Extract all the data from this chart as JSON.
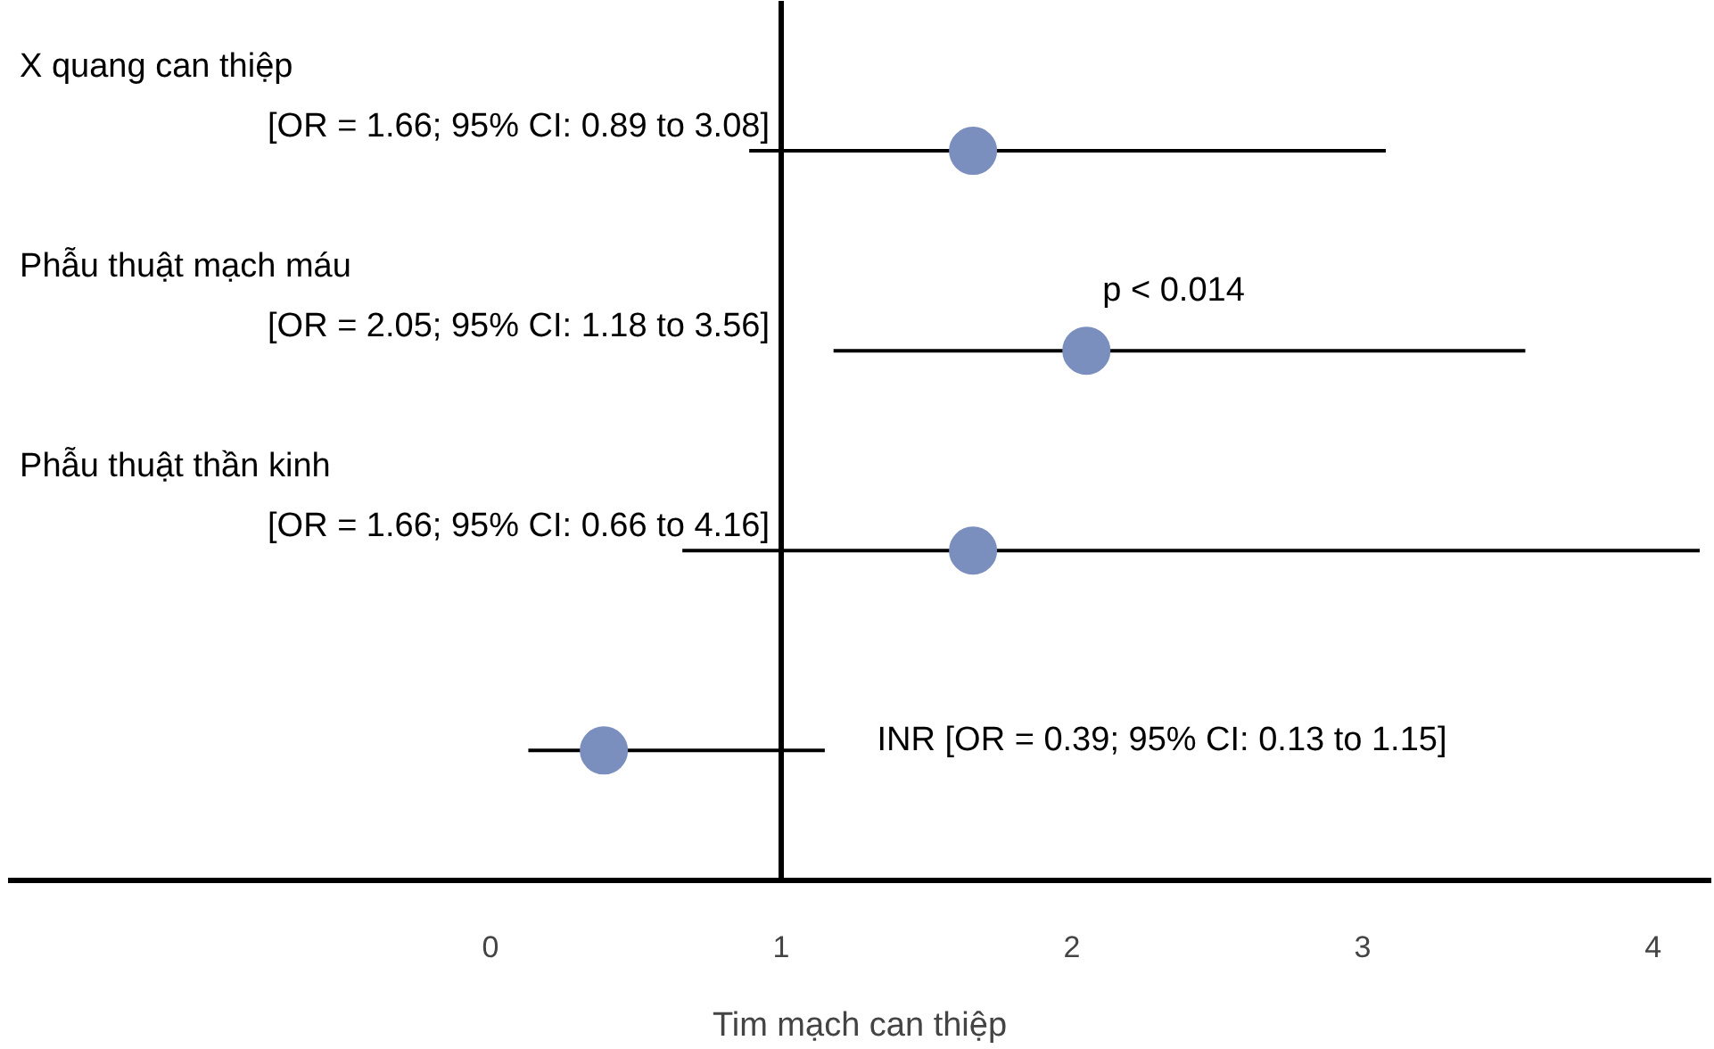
{
  "chart_data": {
    "type": "scatter",
    "orientation": "horizontal",
    "xlabel": "Tim mạch can thiệp",
    "categories": [
      "X quang can thiệp",
      "Phẫu thuật mạch máu",
      "Phẫu thuật thần kinh",
      "INR"
    ],
    "values": [
      1.66,
      2.05,
      1.66,
      0.39
    ],
    "errors": [
      [
        0.89,
        3.08
      ],
      [
        1.18,
        3.56
      ],
      [
        0.66,
        4.16
      ],
      [
        0.13,
        1.15
      ]
    ],
    "color": "#7b8fbf",
    "marker": "circle",
    "xlim": [
      -1.66,
      4.2
    ],
    "xticks": [
      0,
      1,
      2,
      3,
      4
    ],
    "ref_lines": [
      {
        "axis": "x",
        "value": 1
      }
    ],
    "annotations": [
      "[OR = 1.66; 95% CI: 0.89 to 3.08]",
      "[OR = 2.05; 95% CI: 1.18 to 3.56]",
      "[OR = 1.66; 95% CI: 0.66 to 4.16]",
      "[OR = 0.39; 95% CI: 0.13 to 1.15]",
      {
        "text": "p < 0.014",
        "x": 2.05,
        "y": "Phẫu thuật mạch máu"
      }
    ],
    "grid": false
  }
}
